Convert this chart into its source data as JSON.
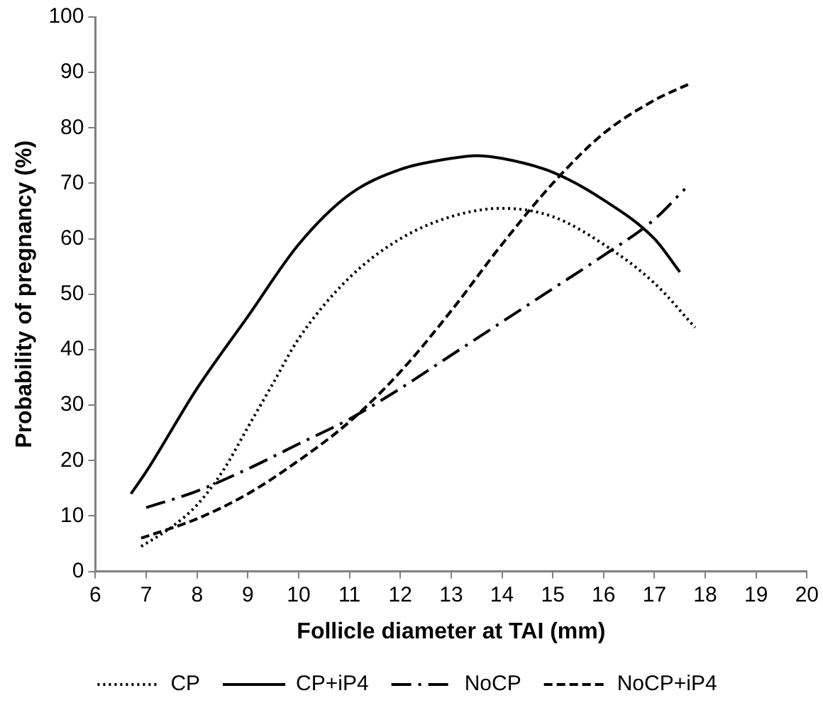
{
  "chart_data": {
    "type": "line",
    "xlabel": "Follicle diameter at TAI (mm)",
    "ylabel": "Probability of pregnancy (%)",
    "xlim": [
      6,
      20
    ],
    "xticks": [
      6,
      7,
      8,
      9,
      10,
      11,
      12,
      13,
      14,
      15,
      16,
      17,
      18,
      19,
      20
    ],
    "ylim": [
      0,
      100
    ],
    "yticks": [
      0,
      10,
      20,
      30,
      40,
      50,
      60,
      70,
      80,
      90,
      100
    ],
    "grid": false,
    "legend": "bottom",
    "marker": "none",
    "series": [
      {
        "name": "CP",
        "color": "#000000",
        "line_style": "dotted",
        "x": [
          6.9,
          7.5,
          8,
          8.5,
          9,
          9.5,
          10,
          11,
          12,
          13,
          14,
          15,
          16,
          17,
          17.8
        ],
        "values": [
          4.5,
          8,
          12,
          18,
          26,
          34,
          42,
          53,
          60,
          64,
          65.5,
          64,
          59,
          52,
          44
        ]
      },
      {
        "name": "CP+iP4",
        "color": "#000000",
        "line_style": "solid",
        "x": [
          6.7,
          7,
          8,
          9,
          10,
          11,
          12,
          13,
          13.5,
          14,
          15,
          16,
          17,
          17.5
        ],
        "values": [
          14,
          18,
          33,
          46,
          59,
          68,
          72.5,
          74.5,
          75,
          74.5,
          72,
          67,
          60,
          54
        ]
      },
      {
        "name": "NoCP",
        "color": "#000000",
        "line_style": "dashdot",
        "x": [
          7,
          8,
          9,
          10,
          11,
          12,
          13,
          14,
          15,
          16,
          17,
          17.6
        ],
        "values": [
          11.5,
          14.5,
          18.5,
          23,
          27.5,
          33,
          39,
          45,
          51,
          57,
          63.5,
          69
        ]
      },
      {
        "name": "NoCP+iP4",
        "color": "#000000",
        "line_style": "dashed",
        "x": [
          6.9,
          8,
          9,
          10,
          11,
          12,
          13,
          14,
          15,
          16,
          17,
          17.7
        ],
        "values": [
          6,
          9.5,
          14,
          20,
          27,
          36,
          47,
          59,
          70,
          79,
          85,
          88
        ]
      }
    ]
  }
}
